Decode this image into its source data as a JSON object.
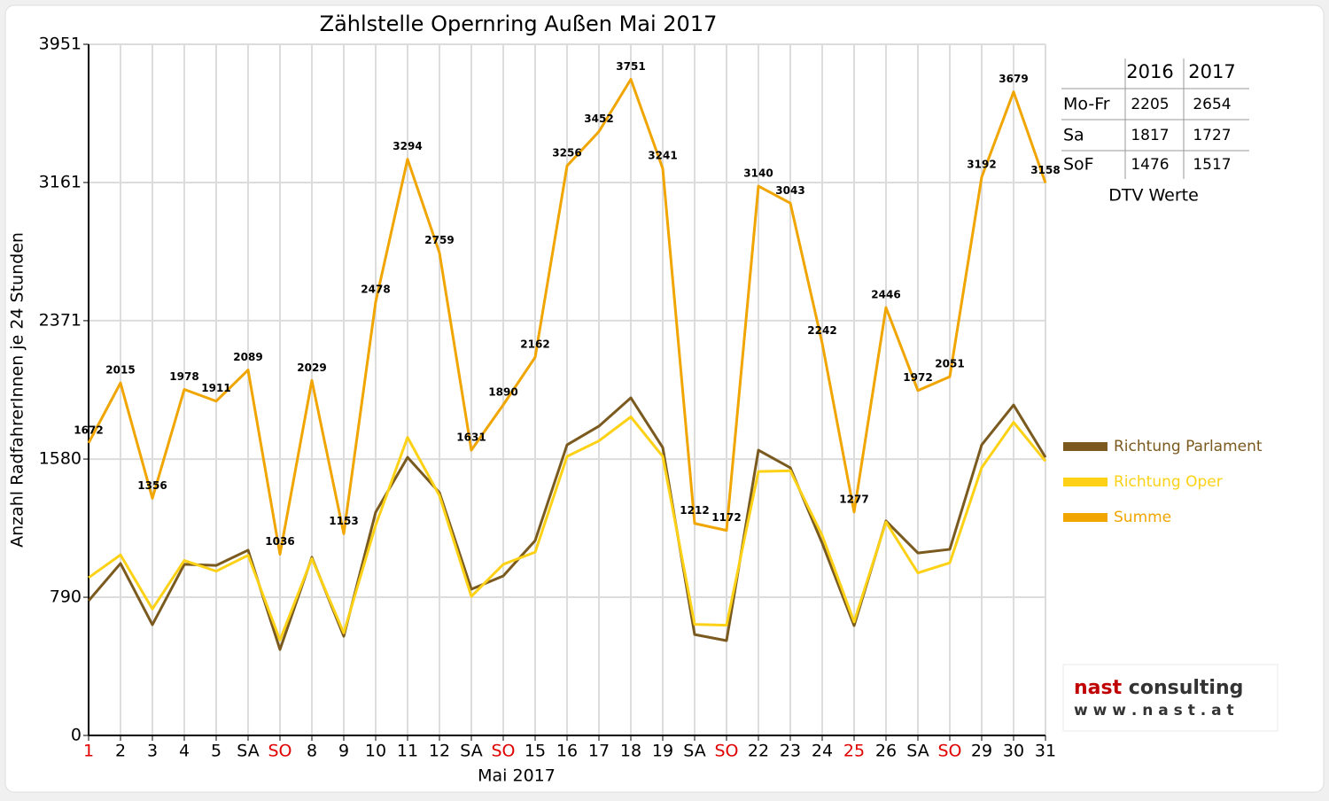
{
  "chart_data": {
    "type": "line",
    "title": "Zählstelle Opernring Außen Mai 2017",
    "xlabel": "Mai 2017",
    "ylabel": "Anzahl RadfahrerInnen je 24 Stunden",
    "categories": [
      "1",
      "2",
      "3",
      "4",
      "5",
      "SA",
      "SO",
      "8",
      "9",
      "10",
      "11",
      "12",
      "SA",
      "SO",
      "15",
      "16",
      "17",
      "18",
      "19",
      "SA",
      "SO",
      "22",
      "23",
      "24",
      "25",
      "26",
      "SA",
      "SO",
      "29",
      "30",
      "31"
    ],
    "category_label_colors": [
      "#e00000",
      "#000000",
      "#000000",
      "#000000",
      "#000000",
      "#000000",
      "#e00000",
      "#000000",
      "#000000",
      "#000000",
      "#000000",
      "#000000",
      "#000000",
      "#e00000",
      "#000000",
      "#000000",
      "#000000",
      "#000000",
      "#000000",
      "#000000",
      "#e00000",
      "#000000",
      "#000000",
      "#000000",
      "#e00000",
      "#000000",
      "#000000",
      "#e00000",
      "#000000",
      "#000000",
      "#000000"
    ],
    "ylim": [
      0,
      3951
    ],
    "yticks": [
      0,
      790,
      1580,
      2371,
      3161,
      3951
    ],
    "grid": true,
    "legend": "right",
    "series": [
      {
        "name": "Richtung Parlament",
        "color": "#7a5a1e",
        "data_labels": false,
        "values": [
          770,
          983,
          633,
          978,
          972,
          1059,
          491,
          1018,
          567,
          1276,
          1590,
          1388,
          836,
          912,
          1114,
          1661,
          1768,
          1930,
          1646,
          577,
          542,
          1631,
          1530,
          1099,
          628,
          1226,
          1043,
          1064,
          1661,
          1889,
          1590
        ]
      },
      {
        "name": "Richtung Oper",
        "color": "#fcd116",
        "data_labels": false,
        "values": [
          902,
          1032,
          723,
          1000,
          939,
          1030,
          545,
          1011,
          586,
          1202,
          1704,
          1371,
          795,
          978,
          1048,
          1595,
          1684,
          1821,
          1595,
          635,
          630,
          1509,
          1513,
          1143,
          649,
          1220,
          929,
          987,
          1531,
          1790,
          1568
        ]
      },
      {
        "name": "Summe",
        "color": "#f0a500",
        "data_labels": true,
        "values": [
          1672,
          2015,
          1356,
          1978,
          1911,
          2089,
          1036,
          2029,
          1153,
          2478,
          3294,
          2759,
          1631,
          1890,
          2162,
          3256,
          3452,
          3751,
          3241,
          1212,
          1172,
          3140,
          3043,
          2242,
          1277,
          2446,
          1972,
          2051,
          3192,
          3679,
          3158
        ]
      }
    ]
  },
  "table": {
    "header": [
      "2016",
      "2017"
    ],
    "rows": [
      [
        "Mo-Fr",
        "2205",
        "2654"
      ],
      [
        "Sa",
        "1817",
        "1727"
      ],
      [
        "SoF",
        "1476",
        "1517"
      ]
    ],
    "caption": "DTV Werte"
  },
  "logo": {
    "brand": "nast",
    "suffix": "consulting",
    "url": "w w w . n a s t . a t"
  }
}
